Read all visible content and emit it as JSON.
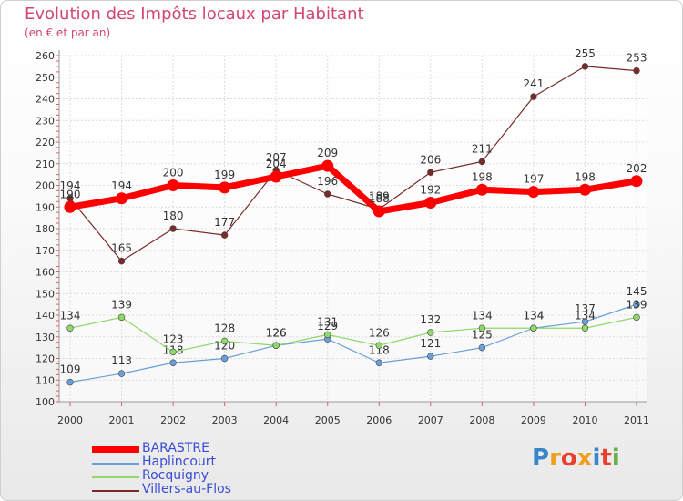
{
  "title": "Evolution des Impôts locaux par Habitant",
  "subtitle": "(en € et par an)",
  "logo": {
    "text": "Proxiti",
    "colors": [
      "#3a86c8",
      "#f0a020",
      "#e84030",
      "#f0a020",
      "#3a86c8",
      "#e84030",
      "#6ab04c"
    ]
  },
  "chart_data": {
    "type": "line",
    "title": "Evolution des Impôts locaux par Habitant",
    "ylabel": "(en € et par an)",
    "xlabel": "",
    "x": [
      "2000",
      "2001",
      "2002",
      "2003",
      "2004",
      "2005",
      "2006",
      "2007",
      "2008",
      "2009",
      "2010",
      "2011"
    ],
    "ylim": [
      100,
      260
    ],
    "yticks": [
      "100",
      "110",
      "120",
      "130",
      "140",
      "150",
      "160",
      "170",
      "180",
      "190",
      "200",
      "210",
      "220",
      "230",
      "240",
      "250",
      "260"
    ],
    "grid": true,
    "series": [
      {
        "name": "BARASTRE",
        "color": "#ff0000",
        "emphasis": true,
        "values": [
          190,
          194,
          200,
          199,
          204,
          209,
          188,
          192,
          198,
          197,
          198,
          202
        ],
        "labels": [
          "190",
          "194",
          "200",
          "199",
          "204",
          "209",
          "188",
          "192",
          "198",
          "197",
          "198",
          "202"
        ]
      },
      {
        "name": "Haplincourt",
        "color": "#6aa0d8",
        "values": [
          109,
          113,
          118,
          120,
          126,
          129,
          118,
          121,
          125,
          134,
          137,
          145
        ],
        "labels": [
          "109",
          "113",
          "118",
          "120",
          "126",
          "129",
          "118",
          "121",
          "125",
          "134",
          "137",
          "145"
        ]
      },
      {
        "name": "Rocquigny",
        "color": "#8fd86b",
        "values": [
          134,
          139,
          123,
          128,
          126,
          131,
          126,
          132,
          134,
          134,
          134,
          139
        ],
        "labels": [
          "134",
          "139",
          "123",
          "128",
          "126",
          "131",
          "126",
          "132",
          "134",
          "134",
          "134",
          "139"
        ]
      },
      {
        "name": "Villers-au-Flos",
        "color": "#7a2a2a",
        "values": [
          194,
          165,
          180,
          177,
          207,
          196,
          189,
          206,
          211,
          241,
          255,
          253
        ],
        "labels": [
          "194",
          "165",
          "180",
          "177",
          "207",
          "196",
          "189",
          "206",
          "211",
          "241",
          "255",
          "253"
        ]
      }
    ]
  }
}
